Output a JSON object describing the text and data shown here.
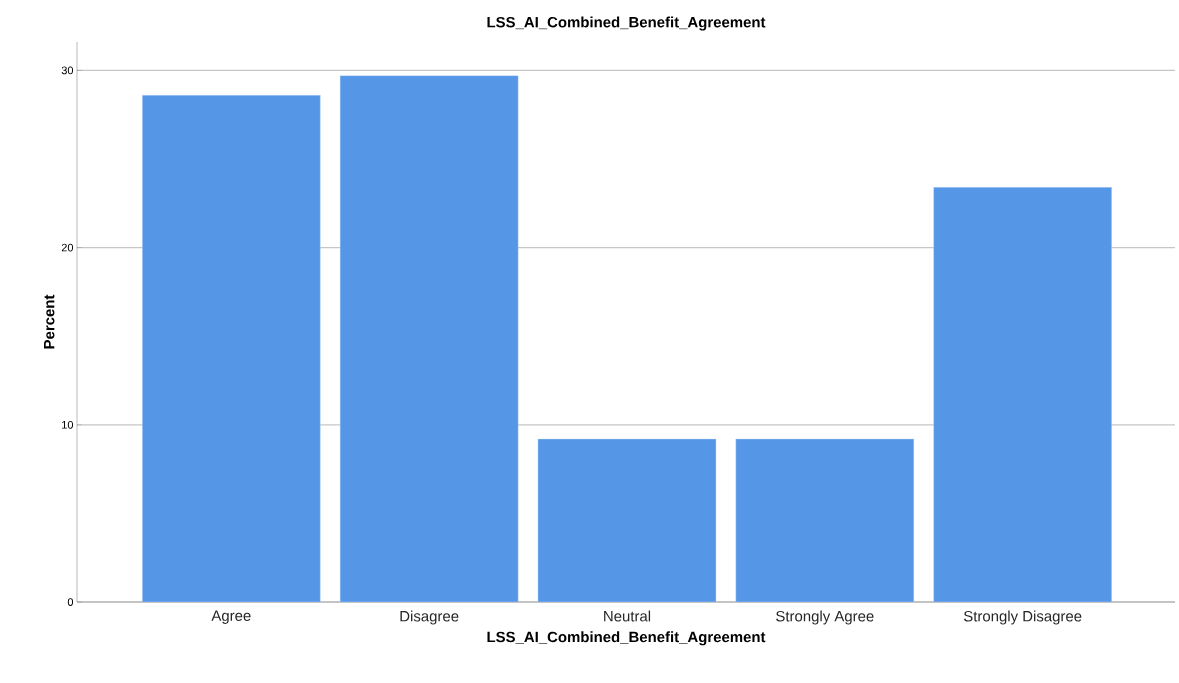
{
  "chart_data": {
    "type": "bar",
    "title": "LSS_AI_Combined_Benefit_Agreement",
    "xlabel": "LSS_AI_Combined_Benefit_Agreement",
    "ylabel": "Percent",
    "categories": [
      "Agree",
      "Disagree",
      "Neutral",
      "Strongly Agree",
      "Strongly Disagree"
    ],
    "values": [
      28.6,
      29.7,
      9.2,
      9.2,
      23.4
    ],
    "color": "#5596e6",
    "ylim": [
      0,
      31.6
    ],
    "yticks": [
      0,
      10,
      20,
      30
    ],
    "grid": "y"
  }
}
